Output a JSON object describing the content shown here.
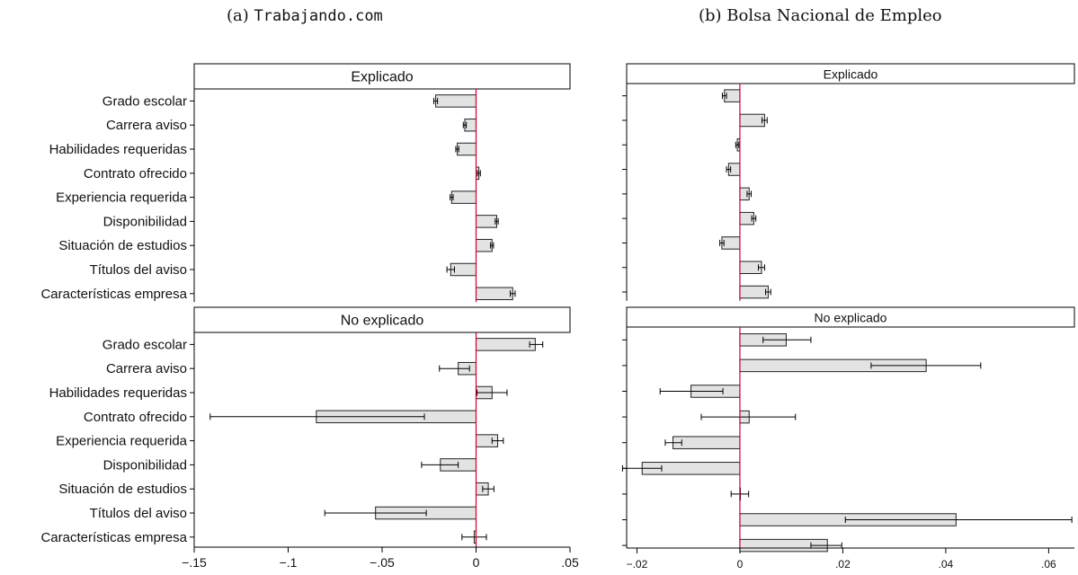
{
  "chart_data": [
    {
      "type": "bar",
      "orientation": "horizontal",
      "subtitle_prefix": "(a)",
      "subtitle_name": "Trabajando.com",
      "categories": [
        "Grado escolar",
        "Carrera aviso",
        "Habilidades requeridas",
        "Contrato ofrecido",
        "Experiencia requerida",
        "Disponibilidad",
        "Situación de estudios",
        "Títulos del aviso",
        "Características empresa"
      ],
      "xlim": [
        -0.15,
        0.05
      ],
      "xticks": [
        -0.15,
        -0.1,
        -0.05,
        0,
        0.05
      ],
      "xtick_labels": [
        "−.15",
        "−.1",
        "−.05",
        "0",
        ".05"
      ],
      "zero_line": true,
      "panels": [
        {
          "title": "Explicado",
          "values": [
            -0.0215,
            -0.006,
            -0.01,
            0.0015,
            -0.013,
            0.011,
            0.0085,
            -0.0135,
            0.0195
          ],
          "ci": [
            [
              -0.0225,
              -0.0205
            ],
            [
              -0.0068,
              -0.0052
            ],
            [
              -0.0108,
              -0.0092
            ],
            [
              0.0007,
              0.0023
            ],
            [
              -0.0138,
              -0.0122
            ],
            [
              0.0102,
              0.0118
            ],
            [
              0.0077,
              0.0093
            ],
            [
              -0.0155,
              -0.0115
            ],
            [
              0.0182,
              0.0208
            ]
          ]
        },
        {
          "title": "No explicado",
          "values": [
            0.0315,
            -0.0095,
            0.0085,
            -0.085,
            0.0115,
            -0.019,
            0.0065,
            -0.0535,
            -0.001
          ],
          "ci": [
            [
              0.0285,
              0.0355
            ],
            [
              -0.0195,
              -0.0035
            ],
            [
              0.0005,
              0.0165
            ],
            [
              -0.1415,
              -0.0275
            ],
            [
              0.0085,
              0.0145
            ],
            [
              -0.029,
              -0.0095
            ],
            [
              0.0035,
              0.0095
            ],
            [
              -0.0805,
              -0.0265
            ],
            [
              -0.0075,
              0.0055
            ]
          ]
        }
      ]
    },
    {
      "type": "bar",
      "orientation": "horizontal",
      "subtitle_prefix": "(b)",
      "subtitle_name": "Bolsa Nacional de Empleo",
      "categories": [
        "Grado escolar",
        "Carrera aviso",
        "Habilidades requeridas",
        "Contrato ofrecido",
        "Experiencia requerida",
        "Disponibilidad",
        "Situación de estudios",
        "Títulos del aviso",
        "Características empresa"
      ],
      "xlim": [
        -0.022,
        0.065
      ],
      "xticks": [
        -0.02,
        0,
        0.02,
        0.04,
        0.06
      ],
      "xtick_labels": [
        "−.02",
        "0",
        ".02",
        ".04",
        ".06"
      ],
      "zero_line": true,
      "panels": [
        {
          "title": "Explicado",
          "values": [
            -0.003,
            0.0048,
            -0.0005,
            -0.0022,
            0.0018,
            0.0027,
            -0.0035,
            0.0042,
            0.0055
          ],
          "ci": [
            [
              -0.0034,
              -0.0026
            ],
            [
              0.0043,
              0.0053
            ],
            [
              -0.0008,
              -0.0002
            ],
            [
              -0.0026,
              -0.0018
            ],
            [
              0.0014,
              0.0022
            ],
            [
              0.0023,
              0.0031
            ],
            [
              -0.0039,
              -0.0031
            ],
            [
              0.0036,
              0.0048
            ],
            [
              0.005,
              0.006
            ]
          ]
        },
        {
          "title": "No explicado",
          "values": [
            0.009,
            0.0362,
            -0.0095,
            0.0018,
            -0.013,
            -0.019,
            0.0,
            0.042,
            0.017
          ],
          "ci": [
            [
              0.0045,
              0.0138
            ],
            [
              0.0255,
              0.0468
            ],
            [
              -0.0155,
              -0.0033
            ],
            [
              -0.0075,
              0.0108
            ],
            [
              -0.0145,
              -0.0113
            ],
            [
              -0.0228,
              -0.0152
            ],
            [
              -0.0017,
              0.0017
            ],
            [
              0.0205,
              0.0645
            ],
            [
              0.0138,
              0.0198
            ]
          ]
        }
      ]
    }
  ],
  "style": {
    "bar_fill": "#e3e3e3",
    "bar_stroke": "#222222",
    "zero_line_color": "#cc0033"
  }
}
